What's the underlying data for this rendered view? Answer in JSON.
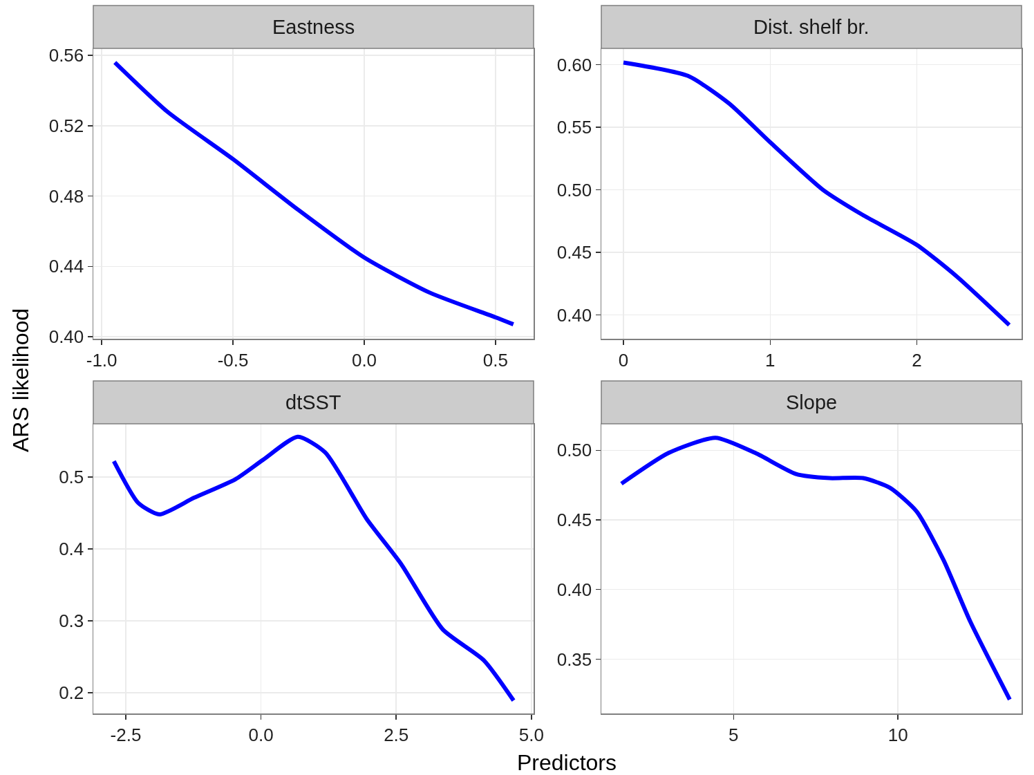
{
  "chart_data": [
    {
      "type": "line",
      "title": "Eastness",
      "ylabel": "ARS likelihood",
      "x": [
        -0.95,
        -0.75,
        -0.5,
        -0.25,
        0,
        0.25,
        0.5,
        0.568
      ],
      "series": [
        {
          "color": "#0000ff",
          "values": [
            0.556,
            0.528,
            0.501,
            0.472,
            0.445,
            0.425,
            0.411,
            0.407
          ]
        }
      ],
      "xlim": [
        -1.032,
        0.645
      ],
      "xticks": [
        {
          "value": -1,
          "label": "-1.0"
        },
        {
          "value": -0.5,
          "label": "-0.5"
        },
        {
          "value": 0,
          "label": "0.0"
        },
        0.5
      ],
      "ylim": [
        0.3988,
        0.564
      ],
      "yticks": [
        {
          "value": 0.4,
          "label": "0.40"
        },
        0.44,
        0.48,
        0.52,
        0.56
      ],
      "grid": true,
      "marker": "none",
      "line_style": "solid"
    },
    {
      "type": "line",
      "title": "Dist. shelf br.",
      "x": [
        0,
        0.44,
        0.72,
        1,
        1.36,
        1.63,
        2,
        2.27,
        2.63
      ],
      "series": [
        {
          "color": "#0000ff",
          "values": [
            0.6017,
            0.591,
            0.569,
            0.538,
            0.5,
            0.48,
            0.456,
            0.431,
            0.392
          ]
        }
      ],
      "xlim": [
        -0.151,
        2.714
      ],
      "xticks": [
        0,
        1,
        2
      ],
      "ylim": [
        0.381,
        0.613
      ],
      "yticks": [
        {
          "value": 0.4,
          "label": "0.40"
        },
        0.45,
        {
          "value": 0.5,
          "label": "0.50"
        },
        0.55,
        {
          "value": 0.6,
          "label": "0.60"
        }
      ],
      "grid": true,
      "marker": "none",
      "line_style": "solid"
    },
    {
      "type": "line",
      "title": "dtSST",
      "xlabel": "Predictors",
      "x": [
        -2.72,
        -2.27,
        -1.88,
        -1.24,
        -0.47,
        0.04,
        0.68,
        1.19,
        1.95,
        2.59,
        3.36,
        4.12,
        4.67
      ],
      "series": [
        {
          "color": "#0000ff",
          "values": [
            0.522,
            0.464,
            0.448,
            0.471,
            0.497,
            0.524,
            0.556,
            0.534,
            0.442,
            0.379,
            0.288,
            0.245,
            0.189
          ]
        }
      ],
      "xlim": [
        -3.1,
        5.04
      ],
      "xticks": [
        -2.5,
        {
          "value": 0,
          "label": "0.0"
        },
        2.5,
        {
          "value": 5,
          "label": "5.0"
        }
      ],
      "ylim": [
        0.171,
        0.574
      ],
      "yticks": [
        0.2,
        0.3,
        0.4,
        0.5
      ],
      "grid": true,
      "marker": "none",
      "line_style": "solid"
    },
    {
      "type": "line",
      "title": "Slope",
      "x": [
        1.59,
        3.02,
        4.45,
        5.67,
        6.9,
        7.92,
        8.94,
        9.76,
        10.57,
        11.39,
        12.2,
        13.4
      ],
      "series": [
        {
          "color": "#0000ff",
          "values": [
            0.476,
            0.498,
            0.509,
            0.498,
            0.483,
            0.48,
            0.48,
            0.473,
            0.456,
            0.421,
            0.377,
            0.321
          ]
        }
      ],
      "xlim": [
        0.98,
        13.76
      ],
      "xticks": [
        5,
        10
      ],
      "ylim": [
        0.311,
        0.519
      ],
      "yticks": [
        0.35,
        {
          "value": 0.4,
          "label": "0.40"
        },
        0.45,
        {
          "value": 0.5,
          "label": "0.50"
        }
      ],
      "grid": true,
      "marker": "none",
      "line_style": "solid"
    }
  ]
}
